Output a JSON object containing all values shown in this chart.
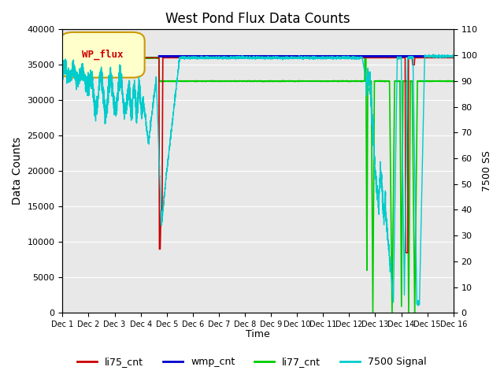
{
  "title": "West Pond Flux Data Counts",
  "ylabel_left": "Data Counts",
  "ylabel_right": "7500 SS",
  "xlabel": "Time",
  "ylim_left": [
    0,
    40000
  ],
  "ylim_right": [
    0,
    110
  ],
  "background_color": "#e8e8e8",
  "legend_label": "WP_flux",
  "x_tick_labels": [
    "Dec 1",
    "Dec 2",
    "Dec 3",
    "Dec 4",
    "Dec 5",
    "Dec 6",
    "Dec 7",
    "Dec 8",
    "Dec 9",
    "Dec 10",
    "Dec 11",
    "Dec 12",
    "Dec 13",
    "Dec 14",
    "Dec 15",
    "Dec 16"
  ],
  "series": {
    "li75_cnt": {
      "color": "#cc0000",
      "lw": 1.2
    },
    "wmp_cnt": {
      "color": "#0000cc",
      "lw": 1.5
    },
    "li77_cnt": {
      "color": "#00cc00",
      "lw": 1.2
    },
    "7500_signal": {
      "color": "#00cccc",
      "lw": 1.0
    }
  },
  "grid_color": "#ffffff",
  "fig_bg": "#ffffff"
}
